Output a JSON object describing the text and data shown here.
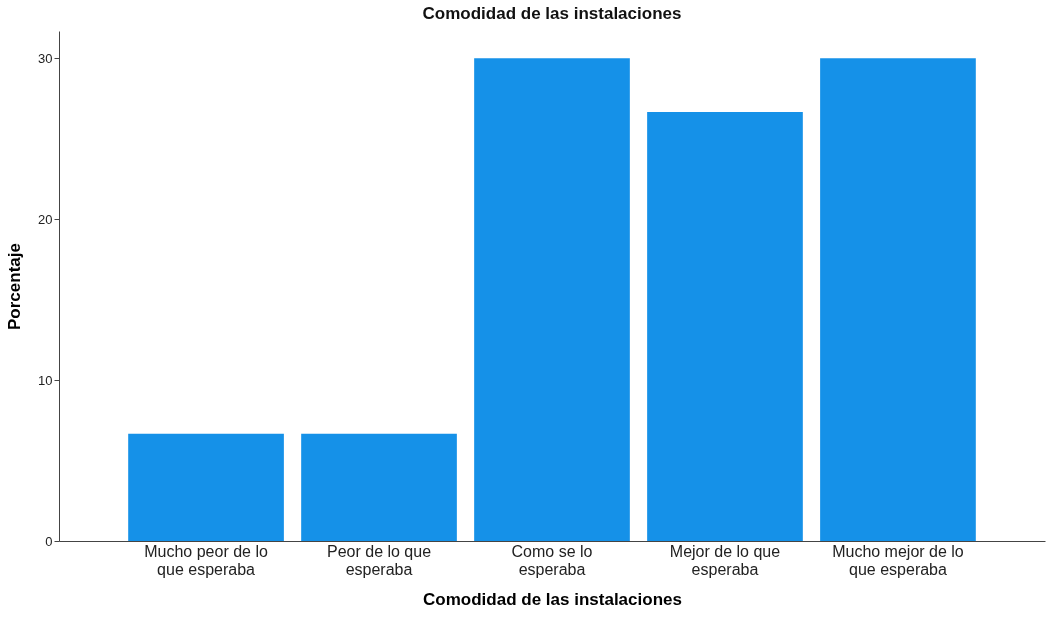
{
  "chart_data": {
    "type": "bar",
    "title": "Comodidad de las instalaciones",
    "xlabel": "Comodidad de las instalaciones",
    "ylabel": "Porcentaje",
    "categories": [
      "Mucho peor de lo que esperaba",
      "Peor de lo que esperaba",
      "Como se lo esperaba",
      "Mejor de lo que esperaba",
      "Mucho mejor de lo que esperaba"
    ],
    "values": [
      6.67,
      6.67,
      30,
      26.67,
      30
    ],
    "color": "#1591e8",
    "ylim": [
      0,
      31.7
    ],
    "yticks": [
      0,
      10,
      20,
      30
    ],
    "grid": false
  }
}
